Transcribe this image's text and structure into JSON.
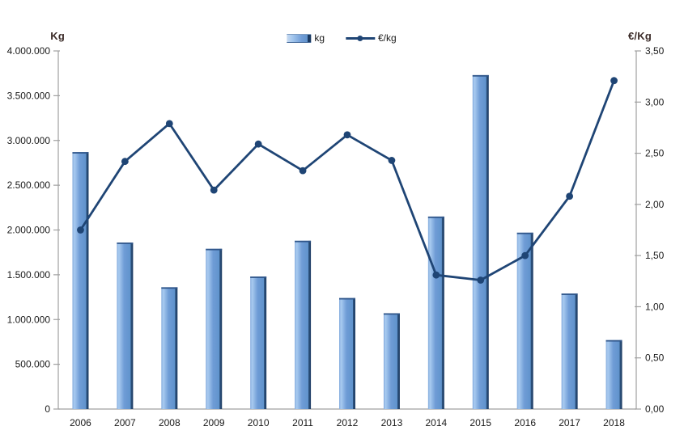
{
  "chart_data": {
    "type": "bar+line combo, dual axis",
    "categories": [
      "2006",
      "2007",
      "2008",
      "2009",
      "2010",
      "2011",
      "2012",
      "2013",
      "2014",
      "2015",
      "2016",
      "2017",
      "2018"
    ],
    "series": [
      {
        "name": "kg",
        "type": "bar",
        "axis": "left",
        "values": [
          2870000,
          1860000,
          1360000,
          1790000,
          1480000,
          1880000,
          1240000,
          1070000,
          2150000,
          3730000,
          1970000,
          1290000,
          770000
        ]
      },
      {
        "name": "€/kg",
        "type": "line",
        "axis": "right",
        "values": [
          1.75,
          2.42,
          2.79,
          2.14,
          2.59,
          2.33,
          2.68,
          2.43,
          1.31,
          1.26,
          1.5,
          2.08,
          3.21
        ]
      }
    ],
    "left_axis": {
      "title": "Kg",
      "min": 0,
      "max": 4000000,
      "step": 500000,
      "tick_labels": [
        "0",
        "500.000",
        "1.000.000",
        "1.500.000",
        "2.000.000",
        "2.500.000",
        "3.000.000",
        "3.500.000",
        "4.000.000"
      ]
    },
    "right_axis": {
      "title": "€/Kg",
      "min": 0,
      "max": 3.5,
      "step": 0.5,
      "tick_labels": [
        "0,00",
        "0,50",
        "1,00",
        "1,50",
        "2,00",
        "2,50",
        "3,00",
        "3,50"
      ]
    },
    "legend": {
      "position": "top-center",
      "items": [
        {
          "label": "kg",
          "marker": "bar"
        },
        {
          "label": "€/kg",
          "marker": "line"
        }
      ]
    },
    "grid": "off"
  },
  "colors": {
    "bar_body": "#6f9cd6",
    "bar_highlight": "#a9cbf0",
    "bar_edge_dark": "#1c3a61",
    "bar_top_cap": "#30568a",
    "line": "#1f4575",
    "axis_line": "#a0a0a0",
    "tick_text": "#1a1a1a",
    "axis_title_text": "#3b2b28"
  }
}
